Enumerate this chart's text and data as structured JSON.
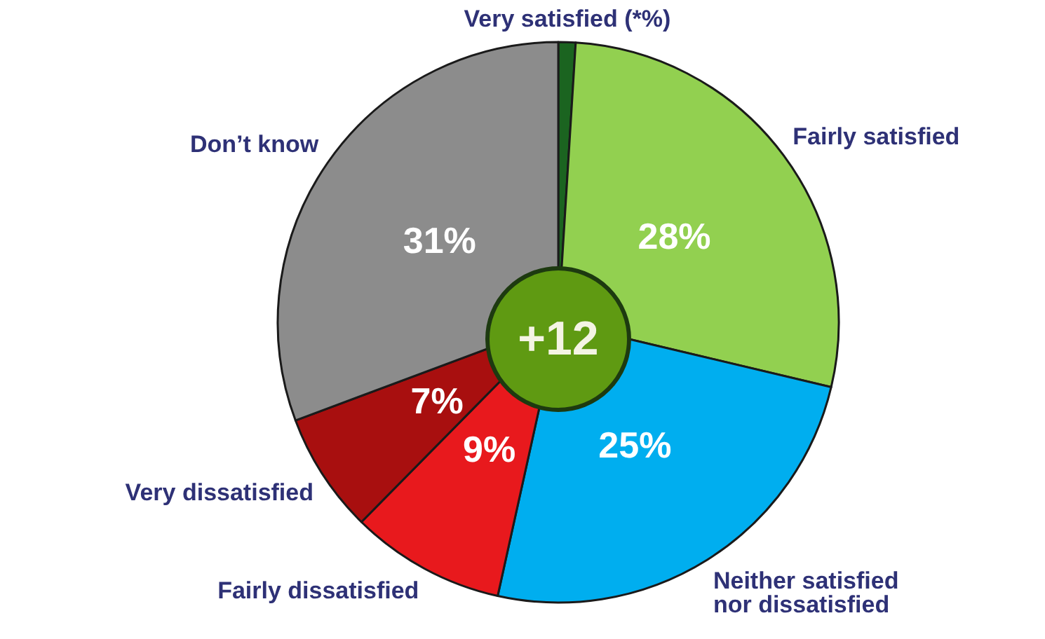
{
  "chart_data": {
    "type": "pie",
    "categories": [
      "Very satisfied (*%)",
      "Fairly satisfied",
      "Neither satisfied nor dissatisfied",
      "Fairly dissatisfied",
      "Very dissatisfied",
      "Don’t know"
    ],
    "values": [
      1,
      28,
      25,
      9,
      7,
      31
    ],
    "value_labels": [
      null,
      "28%",
      "25%",
      "9%",
      "7%",
      "31%"
    ],
    "colors": [
      "#1b6420",
      "#92d050",
      "#00aeef",
      "#e8191d",
      "#a80f0f",
      "#8c8c8c"
    ],
    "annotations": [
      "+12"
    ],
    "legend": false
  }
}
